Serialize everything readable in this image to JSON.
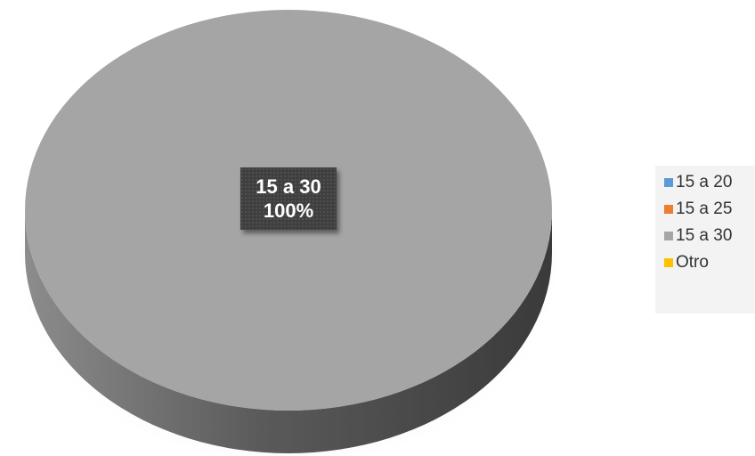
{
  "chart_data": {
    "type": "pie",
    "style": "3d",
    "categories": [
      "15 a 20",
      "15 a 25",
      "15 a 30",
      "Otro"
    ],
    "values": [
      0,
      0,
      100,
      0
    ],
    "colors": [
      "#5b9bd5",
      "#ed7d31",
      "#a5a5a5",
      "#ffc000"
    ],
    "data_labels": [
      {
        "category": "15 a 30",
        "value_text": "100%"
      }
    ],
    "legend_placement": "right"
  }
}
